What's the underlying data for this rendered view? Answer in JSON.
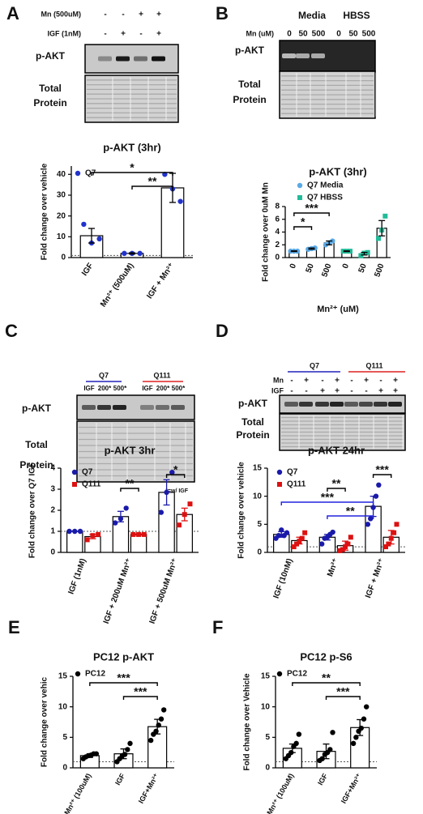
{
  "panels": [
    "A",
    "B",
    "C",
    "D",
    "E",
    "F"
  ],
  "blots": [
    {
      "rows": [
        {
          "label": "Mn (500uM)",
          "signs": [
            "-",
            "-",
            "+",
            "+"
          ]
        },
        {
          "label": "IGF (1nM)",
          "signs": [
            "-",
            "+",
            "-",
            "+"
          ]
        }
      ],
      "label": "p-AKT",
      "total": [
        "Total",
        "Protein"
      ]
    },
    {
      "groups": [
        "Media",
        "HBSS"
      ],
      "rows": [
        {
          "label": "Mn (uM)",
          "signs": [
            "0",
            "50",
            "500",
            "0",
            "50",
            "500"
          ]
        }
      ],
      "label": "p-AKT",
      "total": [
        "Total",
        "Protein"
      ]
    },
    {
      "groups": [
        "Q7",
        "Q111"
      ],
      "group_colors": [
        "#2222bb",
        "#dd2222"
      ],
      "rows": [
        {
          "signs": [
            "IGF",
            "200*",
            "500*",
            "IGF",
            "200*",
            "500*"
          ]
        }
      ],
      "label": "p-AKT",
      "total": [
        "Total",
        "Protein"
      ],
      "note": "*=w/ IGF"
    },
    {
      "groups": [
        "Q7",
        "Q111"
      ],
      "group_colors": [
        "#2222bb",
        "#dd2222"
      ],
      "rows": [
        {
          "label": "Mn",
          "signs": [
            "-",
            "+",
            "-",
            "+",
            "-",
            "+",
            "-",
            "+"
          ]
        },
        {
          "label": "IGF",
          "signs": [
            "-",
            "-",
            "+",
            "+",
            "-",
            "-",
            "+",
            "+"
          ]
        }
      ],
      "label": "p-AKT",
      "total": [
        "Total",
        "Protein"
      ]
    }
  ],
  "chart_data": [
    {
      "type": "bar",
      "title": "p-AKT (3hr)",
      "ylabel": "Fold  change over vehicle",
      "categories": [
        "IGF",
        "Mn²⁺ (500uM)",
        "IGF + Mn²⁺"
      ],
      "series": [
        {
          "name": "Q7",
          "color": "#2233cc",
          "marker": "circle",
          "error_color": "#000000",
          "values": [
            10.5,
            2,
            33.5
          ],
          "errors": [
            3.5,
            0.3,
            7
          ],
          "points": [
            [
              16,
              7,
              9
            ],
            [
              2,
              2,
              2
            ],
            [
              40,
              33,
              27
            ]
          ]
        }
      ],
      "ylim": [
        0,
        44
      ],
      "yticks": [
        0,
        10,
        20,
        30,
        40
      ],
      "reference_line": 1,
      "significance": [
        {
          "label": "*",
          "from": [
            0,
            0
          ],
          "to": [
            2,
            0
          ]
        },
        {
          "label": "**",
          "from": [
            1,
            0
          ],
          "to": [
            2,
            0
          ]
        }
      ]
    },
    {
      "type": "bar",
      "title": "p-AKT (3hr)",
      "ylabel": "Fold change over 0uM Mn",
      "xlabel": "Mn²⁺ (uM)",
      "categories": [
        "0",
        "50",
        "500",
        "0",
        "50",
        "500"
      ],
      "series": [
        {
          "name": "Q7 Media",
          "color": "#5aa9e6",
          "marker": "circle",
          "error_color": "#000000",
          "values": [
            1,
            1.4,
            2.3,
            null,
            null,
            null
          ],
          "errors": [
            0.05,
            0.1,
            0.3,
            null,
            null,
            null
          ],
          "points": [
            [
              1,
              1,
              1
            ],
            [
              1.3,
              1.4,
              1.5
            ],
            [
              2,
              2.3,
              2.6
            ],
            null,
            null,
            null
          ]
        },
        {
          "name": "Q7 HBSS",
          "color": "#22bb99",
          "marker": "square",
          "error_color": "#000000",
          "values": [
            null,
            null,
            null,
            1,
            0.6,
            4.6
          ],
          "errors": [
            null,
            null,
            null,
            0.05,
            0.2,
            1.2
          ],
          "points": [
            null,
            null,
            null,
            [
              1,
              1,
              1
            ],
            [
              0.3,
              0.7,
              0.8
            ],
            [
              3,
              4.3,
              6.5
            ]
          ]
        }
      ],
      "ylim": [
        0,
        8
      ],
      "yticks": [
        0,
        2,
        4,
        6,
        8
      ],
      "significance": [
        {
          "label": "***",
          "from": [
            0,
            0
          ],
          "to": [
            2,
            0
          ]
        },
        {
          "label": "*",
          "from": [
            0,
            0
          ],
          "to": [
            1,
            0
          ]
        }
      ]
    },
    {
      "type": "bar",
      "title": "p-AKT 3hr",
      "ylabel": "Fold change over Q7 IGF",
      "categories": [
        "IGF (1nM)",
        "IGF + 200uM Mn²⁺",
        "IGF + 500uM Mn²⁺"
      ],
      "series": [
        {
          "name": "Q7",
          "color": "#1a1aaa",
          "marker": "circle",
          "error_color": "#1a1aaa",
          "values": [
            1,
            1.7,
            2.85
          ],
          "errors": [
            0,
            0.25,
            0.6
          ],
          "points": [
            [
              1,
              1,
              1
            ],
            [
              1.4,
              1.6,
              2.1
            ],
            [
              1.9,
              2.85,
              3.8
            ]
          ]
        },
        {
          "name": "Q111",
          "color": "#dd1111",
          "marker": "square",
          "error_color": "#dd1111",
          "values": [
            0.75,
            0.85,
            1.8
          ],
          "errors": [
            0.1,
            0.03,
            0.3
          ],
          "points": [
            [
              0.6,
              0.8,
              0.85
            ],
            [
              0.85,
              0.85,
              0.85
            ],
            [
              1.3,
              1.8,
              2.3
            ]
          ]
        }
      ],
      "ylim": [
        0,
        4
      ],
      "yticks": [
        0,
        1,
        2,
        3,
        4
      ],
      "reference_line": 1,
      "significance": [
        {
          "label": "*",
          "from": [
            2,
            0
          ],
          "to": [
            2,
            1
          ]
        },
        {
          "label": "**",
          "from": [
            1,
            0
          ],
          "to": [
            1,
            1
          ]
        }
      ]
    },
    {
      "type": "bar",
      "title": "p-AKT 24hr",
      "ylabel": "Fold change over vehicle",
      "categories": [
        "IGF (10nM)",
        "Mn²⁺",
        "IGF + Mn²⁺"
      ],
      "series": [
        {
          "name": "Q7",
          "color": "#1a1aaa",
          "marker": "circle",
          "error_color": "#1a1aaa",
          "values": [
            3.2,
            2.7,
            8.2
          ],
          "errors": [
            0.5,
            0.5,
            1.8
          ],
          "points": [
            [
              2.5,
              3,
              4,
              3,
              3.5
            ],
            [
              1.5,
              2.5,
              2.7,
              3.2,
              3.6
            ],
            [
              5,
              6,
              8,
              10,
              12
            ]
          ]
        },
        {
          "name": "Q111",
          "color": "#dd1111",
          "marker": "square",
          "error_color": "#dd1111",
          "values": [
            2.1,
            1.2,
            2.7
          ],
          "errors": [
            0.6,
            0.8,
            1.2
          ],
          "points": [
            [
              1,
              1.5,
              2,
              2.5,
              3.5
            ],
            [
              0.3,
              0.5,
              1,
              1.5,
              2.7
            ],
            [
              1,
              1.5,
              2.5,
              3.5,
              5
            ]
          ]
        }
      ],
      "ylim": [
        0,
        15
      ],
      "yticks": [
        0,
        5,
        10,
        15
      ],
      "reference_line": 1,
      "significance": [
        {
          "label": "***",
          "from": [
            2,
            0
          ],
          "to": [
            2,
            1
          ]
        },
        {
          "label": "**",
          "from": [
            1,
            0
          ],
          "to": [
            1,
            1
          ]
        },
        {
          "label": "***",
          "from": [
            0,
            0
          ],
          "to": [
            2,
            0
          ],
          "color": "#2222dd"
        },
        {
          "label": "**",
          "from": [
            1,
            0
          ],
          "to": [
            2,
            0
          ],
          "color": "#2222dd"
        }
      ]
    },
    {
      "type": "bar",
      "title": "PC12 p-AKT",
      "ylabel": "Fold change over vehic",
      "categories": [
        "Mn²⁺ (100uM)",
        "IGF",
        "IGF+Mn²⁺"
      ],
      "series": [
        {
          "name": "PC12",
          "color": "#000000",
          "marker": "circle",
          "error_color": "#000000",
          "values": [
            2,
            2.3,
            6.75
          ],
          "errors": [
            0.3,
            0.8,
            1.2
          ],
          "points": [
            [
              1.5,
              1.8,
              2,
              2.1,
              2.3,
              2.3
            ],
            [
              1,
              1.5,
              2,
              2.2,
              3,
              4
            ],
            [
              4.5,
              5.5,
              6,
              7,
              8,
              9.5
            ]
          ]
        }
      ],
      "ylim": [
        0,
        15
      ],
      "yticks": [
        0,
        5,
        10,
        15
      ],
      "reference_line": 1,
      "significance": [
        {
          "label": "***",
          "from": [
            0,
            0
          ],
          "to": [
            2,
            0
          ]
        },
        {
          "label": "***",
          "from": [
            1,
            0
          ],
          "to": [
            2,
            0
          ]
        }
      ]
    },
    {
      "type": "bar",
      "title": "PC12 p-S6",
      "ylabel": "Fold change over Vehicle",
      "categories": [
        "Mn²⁺ (100uM)",
        "IGF",
        "IGF+Mn²⁺"
      ],
      "series": [
        {
          "name": "PC12",
          "color": "#000000",
          "marker": "circle",
          "error_color": "#000000",
          "values": [
            3.2,
            2.7,
            6.6
          ],
          "errors": [
            0.7,
            1.2,
            1.3
          ],
          "points": [
            [
              1.5,
              2,
              2.5,
              3.5,
              4,
              5.5
            ],
            [
              1.2,
              1.5,
              2.2,
              2.5,
              3,
              5.8
            ],
            [
              4,
              5,
              6,
              6.5,
              8,
              10
            ]
          ]
        }
      ],
      "ylim": [
        0,
        15
      ],
      "yticks": [
        0,
        5,
        10,
        15
      ],
      "reference_line": 1,
      "significance": [
        {
          "label": "**",
          "from": [
            0,
            0
          ],
          "to": [
            2,
            0
          ]
        },
        {
          "label": "***",
          "from": [
            1,
            0
          ],
          "to": [
            2,
            0
          ]
        }
      ]
    }
  ]
}
